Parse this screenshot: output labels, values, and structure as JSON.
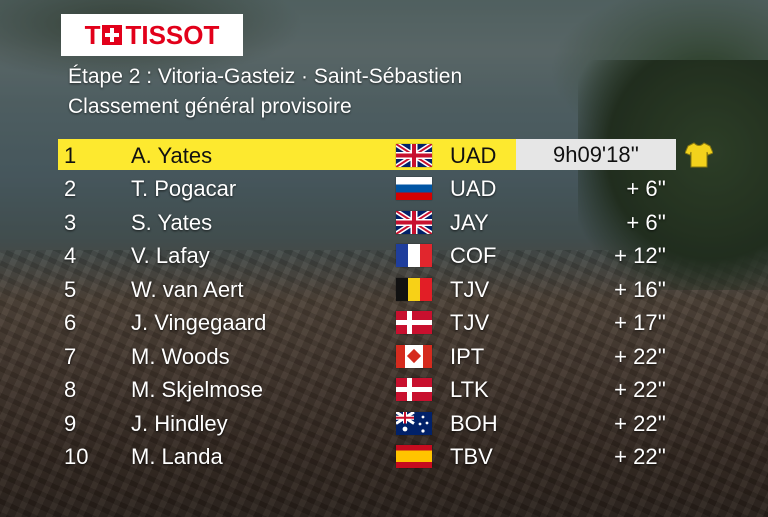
{
  "logo": {
    "text": "TISSOT",
    "prefix": "T",
    "brand_color": "#e2001a"
  },
  "header": {
    "title": "Étape 2 : Vitoria-Gasteiz · Saint-Sébastien",
    "subtitle": "Classement général provisoire"
  },
  "colors": {
    "leader_bg": "#fde92f",
    "leader_time_bg": "#e6e6e6"
  },
  "standings": [
    {
      "rank": "1",
      "name": "A. Yates",
      "flag": "gb-flag-icon",
      "team": "UAD",
      "time": "9h09'18''",
      "leader": true,
      "jersey": "yellow-jersey-icon"
    },
    {
      "rank": "2",
      "name": "T. Pogacar",
      "flag": "si-flag-icon",
      "team": "UAD",
      "time": "+ 6''"
    },
    {
      "rank": "3",
      "name": "S. Yates",
      "flag": "gb-flag-icon",
      "team": "JAY",
      "time": "+ 6''"
    },
    {
      "rank": "4",
      "name": "V. Lafay",
      "flag": "fr-flag-icon",
      "team": "COF",
      "time": "+ 12''"
    },
    {
      "rank": "5",
      "name": "W. van Aert",
      "flag": "be-flag-icon",
      "team": "TJV",
      "time": "+ 16''"
    },
    {
      "rank": "6",
      "name": "J. Vingegaard",
      "flag": "dk-flag-icon",
      "team": "TJV",
      "time": "+ 17''"
    },
    {
      "rank": "7",
      "name": "M. Woods",
      "flag": "ca-flag-icon",
      "team": "IPT",
      "time": "+ 22''"
    },
    {
      "rank": "8",
      "name": "M. Skjelmose",
      "flag": "dk-flag-icon",
      "team": "LTK",
      "time": "+ 22''"
    },
    {
      "rank": "9",
      "name": "J. Hindley",
      "flag": "au-flag-icon",
      "team": "BOH",
      "time": "+ 22''"
    },
    {
      "rank": "10",
      "name": "M. Landa",
      "flag": "es-flag-icon",
      "team": "TBV",
      "time": "+ 22''"
    }
  ]
}
